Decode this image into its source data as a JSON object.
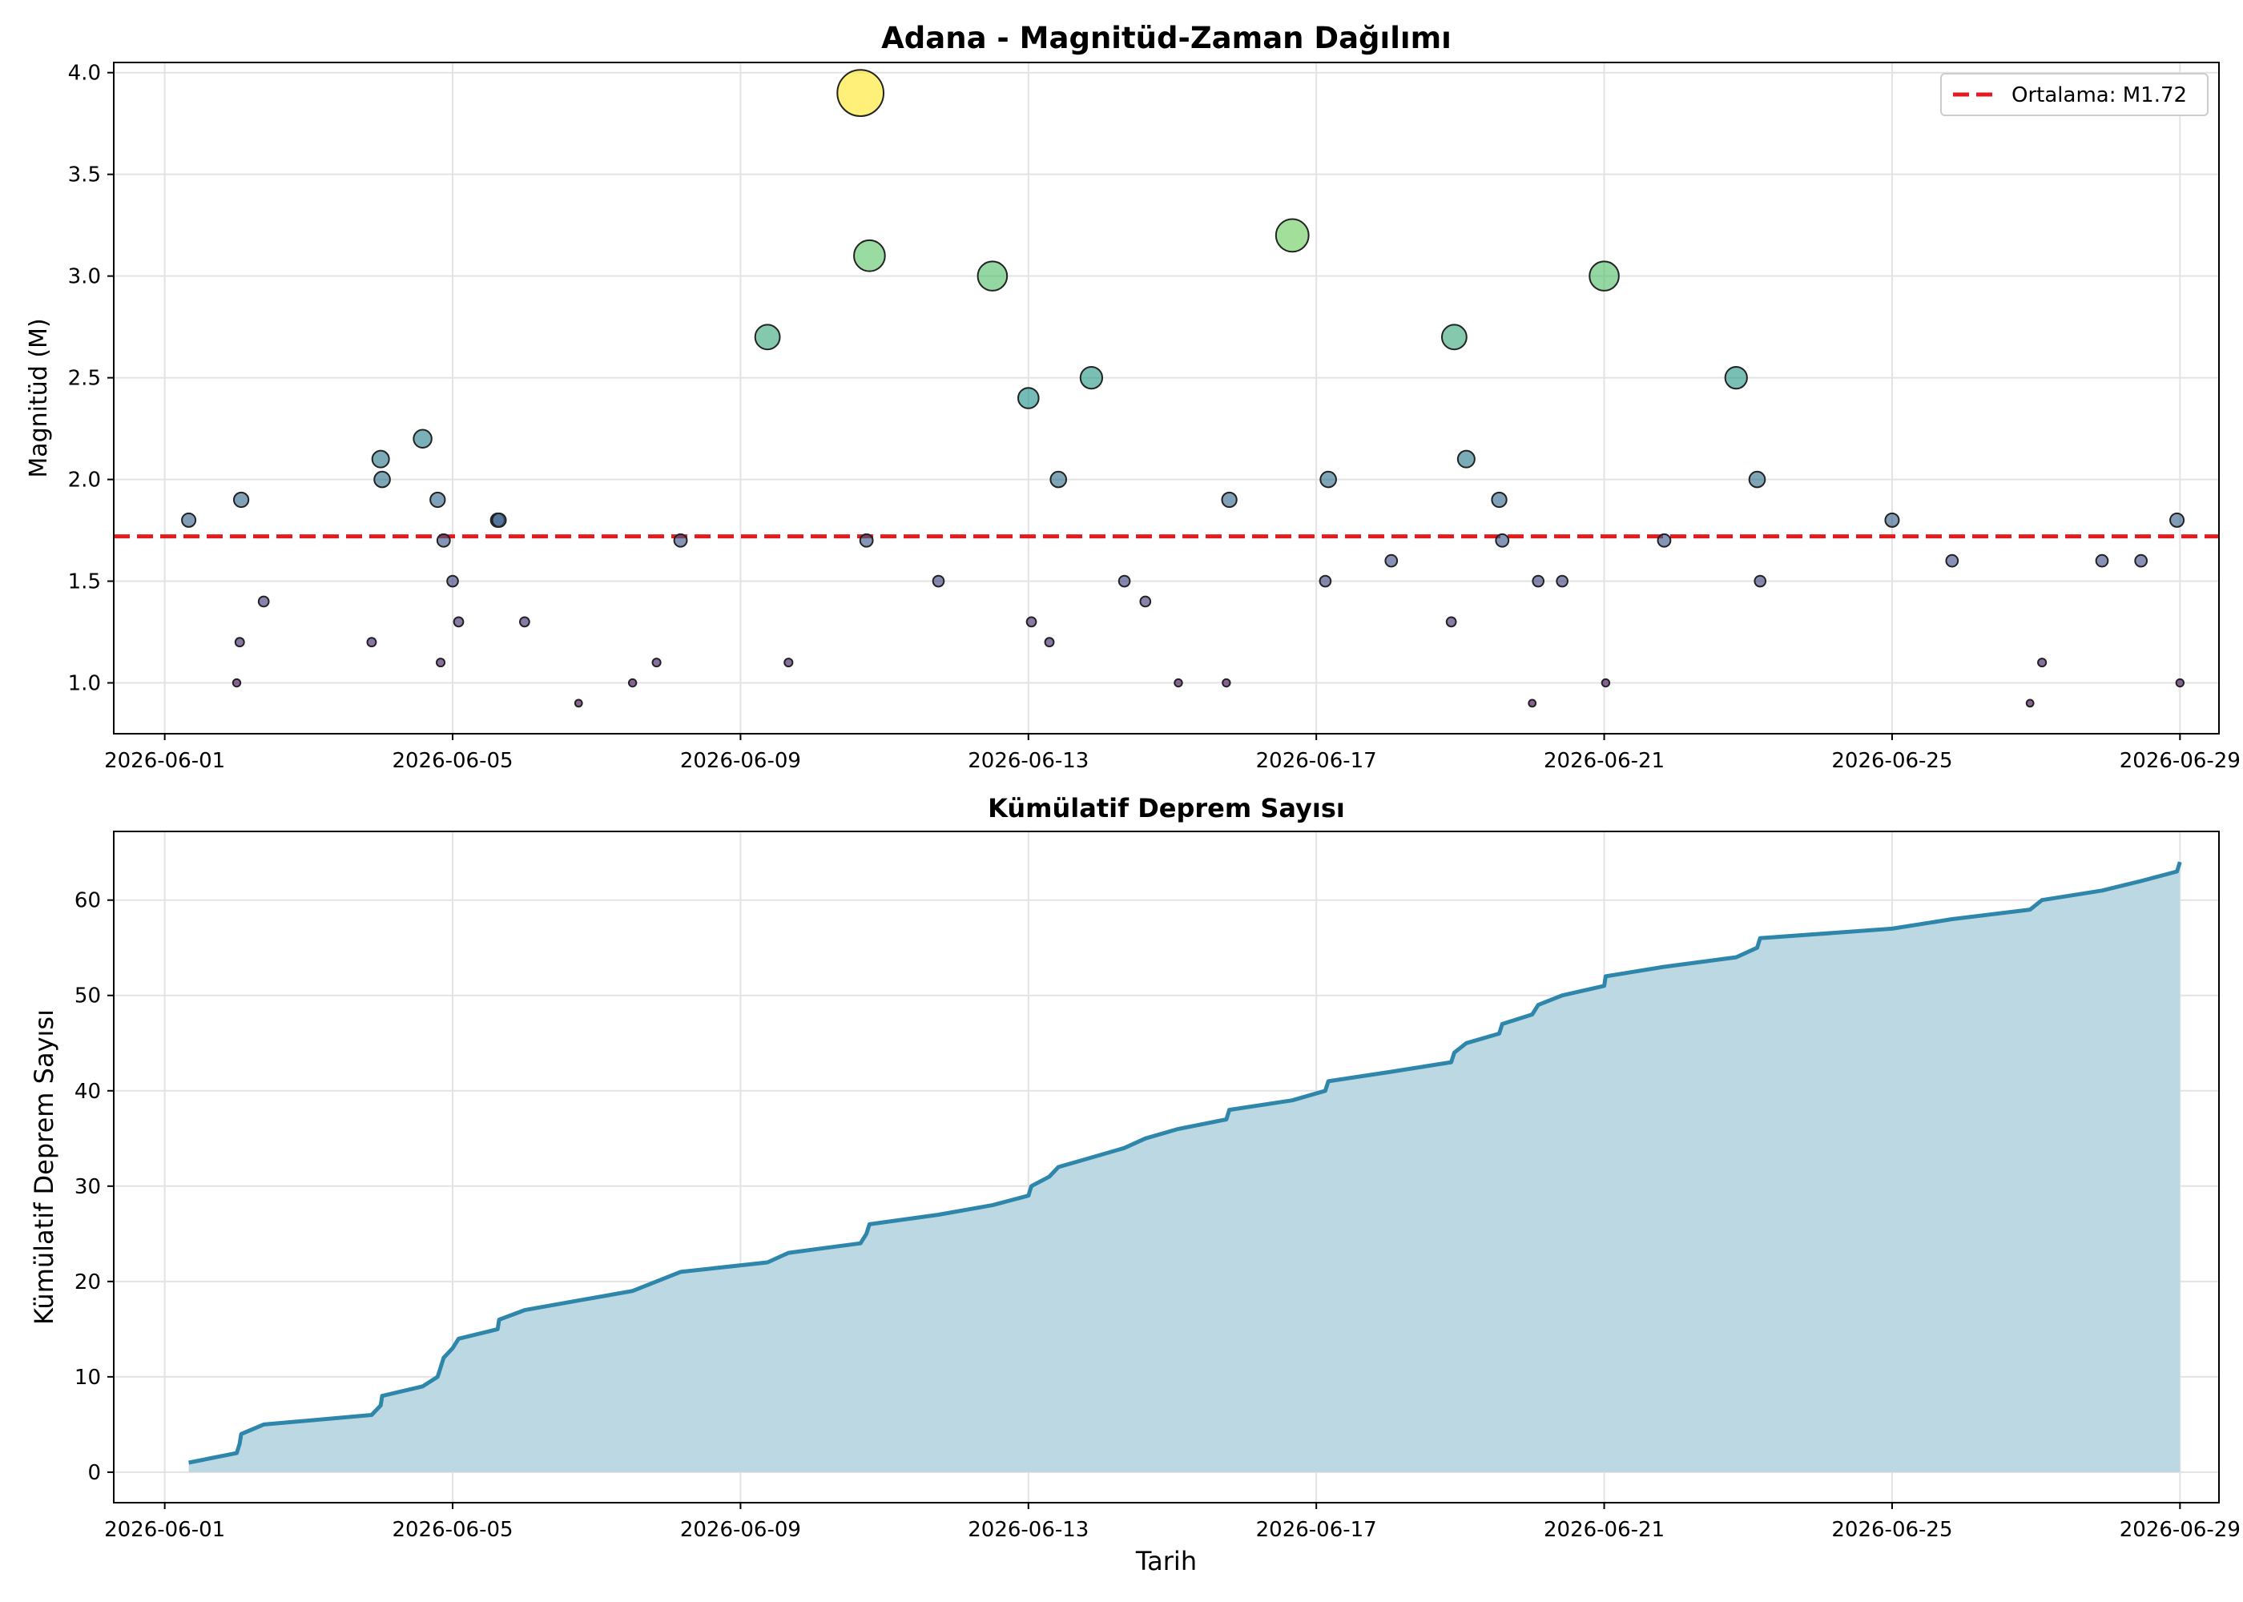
{
  "chart_data": [
    {
      "type": "scatter",
      "title": "Adana - Magnitüd-Zaman Dağılımı",
      "xlabel": "",
      "ylabel": "Magnitüd (M)",
      "x_ticks": [
        "2026-06-01",
        "2026-06-05",
        "2026-06-09",
        "2026-06-13",
        "2026-06-17",
        "2026-06-21",
        "2026-06-25",
        "2026-06-29"
      ],
      "y_ticks": [
        "1.0",
        "1.5",
        "2.0",
        "2.5",
        "3.0",
        "3.5",
        "4.0"
      ],
      "xlim": [
        "2026-05-31T07:00",
        "2026-06-29T13:00"
      ],
      "ylim": [
        0.75,
        4.05
      ],
      "grid": true,
      "legend": "top-right",
      "mean_line": {
        "label": "Ortalama: M1.72",
        "value": 1.72,
        "color": "#e41a1c"
      },
      "points": [
        {
          "x": "2026-06-01T08:00",
          "y": 1.8
        },
        {
          "x": "2026-06-02T00:00",
          "y": 1.0
        },
        {
          "x": "2026-06-02T01:00",
          "y": 1.2
        },
        {
          "x": "2026-06-02T01:30",
          "y": 1.9
        },
        {
          "x": "2026-06-02T09:00",
          "y": 1.4
        },
        {
          "x": "2026-06-03T21:00",
          "y": 1.2
        },
        {
          "x": "2026-06-04T00:00",
          "y": 2.1
        },
        {
          "x": "2026-06-04T00:30",
          "y": 2.0
        },
        {
          "x": "2026-06-04T14:00",
          "y": 2.2
        },
        {
          "x": "2026-06-04T19:00",
          "y": 1.9
        },
        {
          "x": "2026-06-04T20:00",
          "y": 1.1
        },
        {
          "x": "2026-06-04T21:00",
          "y": 1.7
        },
        {
          "x": "2026-06-05T00:00",
          "y": 1.5
        },
        {
          "x": "2026-06-05T02:00",
          "y": 1.3
        },
        {
          "x": "2026-06-05T15:00",
          "y": 1.8
        },
        {
          "x": "2026-06-05T15:30",
          "y": 1.8
        },
        {
          "x": "2026-06-06T00:00",
          "y": 1.3
        },
        {
          "x": "2026-06-06T18:00",
          "y": 0.9
        },
        {
          "x": "2026-06-07T12:00",
          "y": 1.0
        },
        {
          "x": "2026-06-07T20:00",
          "y": 1.1
        },
        {
          "x": "2026-06-08T04:00",
          "y": 1.7
        },
        {
          "x": "2026-06-09T09:00",
          "y": 2.7
        },
        {
          "x": "2026-06-09T16:00",
          "y": 1.1
        },
        {
          "x": "2026-06-10T16:00",
          "y": 3.9
        },
        {
          "x": "2026-06-10T18:00",
          "y": 1.7
        },
        {
          "x": "2026-06-10T19:00",
          "y": 3.1
        },
        {
          "x": "2026-06-11T18:00",
          "y": 1.5
        },
        {
          "x": "2026-06-12T12:00",
          "y": 3.0
        },
        {
          "x": "2026-06-13T00:00",
          "y": 2.4
        },
        {
          "x": "2026-06-13T01:00",
          "y": 1.3
        },
        {
          "x": "2026-06-13T07:00",
          "y": 1.2
        },
        {
          "x": "2026-06-13T10:00",
          "y": 2.0
        },
        {
          "x": "2026-06-13T21:00",
          "y": 2.5
        },
        {
          "x": "2026-06-14T08:00",
          "y": 1.5
        },
        {
          "x": "2026-06-14T15:00",
          "y": 1.4
        },
        {
          "x": "2026-06-15T02:00",
          "y": 1.0
        },
        {
          "x": "2026-06-15T18:00",
          "y": 1.0
        },
        {
          "x": "2026-06-15T19:00",
          "y": 1.9
        },
        {
          "x": "2026-06-16T16:00",
          "y": 3.2
        },
        {
          "x": "2026-06-17T03:00",
          "y": 1.5
        },
        {
          "x": "2026-06-17T04:00",
          "y": 2.0
        },
        {
          "x": "2026-06-18T01:00",
          "y": 1.6
        },
        {
          "x": "2026-06-18T21:00",
          "y": 1.3
        },
        {
          "x": "2026-06-18T22:00",
          "y": 2.7
        },
        {
          "x": "2026-06-19T02:00",
          "y": 2.1
        },
        {
          "x": "2026-06-19T13:00",
          "y": 1.9
        },
        {
          "x": "2026-06-19T14:00",
          "y": 1.7
        },
        {
          "x": "2026-06-20T00:00",
          "y": 0.9
        },
        {
          "x": "2026-06-20T02:00",
          "y": 1.5
        },
        {
          "x": "2026-06-20T10:00",
          "y": 1.5
        },
        {
          "x": "2026-06-21T00:00",
          "y": 3.0
        },
        {
          "x": "2026-06-21T00:30",
          "y": 1.0
        },
        {
          "x": "2026-06-21T20:00",
          "y": 1.7
        },
        {
          "x": "2026-06-22T20:00",
          "y": 2.5
        },
        {
          "x": "2026-06-23T03:00",
          "y": 2.0
        },
        {
          "x": "2026-06-23T04:00",
          "y": 1.5
        },
        {
          "x": "2026-06-25T00:00",
          "y": 1.8
        },
        {
          "x": "2026-06-25T20:00",
          "y": 1.6
        },
        {
          "x": "2026-06-26T22:00",
          "y": 0.9
        },
        {
          "x": "2026-06-27T02:00",
          "y": 1.1
        },
        {
          "x": "2026-06-27T22:00",
          "y": 1.6
        },
        {
          "x": "2026-06-28T11:00",
          "y": 1.6
        },
        {
          "x": "2026-06-28T23:00",
          "y": 1.8
        },
        {
          "x": "2026-06-29T00:00",
          "y": 1.0
        }
      ]
    },
    {
      "type": "area",
      "title": "Kümülatif Deprem Sayısı",
      "xlabel": "Tarih",
      "ylabel": "Kümülatif Deprem Sayısı",
      "x_ticks": [
        "2026-06-01",
        "2026-06-05",
        "2026-06-09",
        "2026-06-13",
        "2026-06-17",
        "2026-06-21",
        "2026-06-25",
        "2026-06-29"
      ],
      "y_ticks": [
        "0",
        "10",
        "20",
        "30",
        "40",
        "50",
        "60"
      ],
      "xlim": [
        "2026-05-31T07:00",
        "2026-06-29T13:00"
      ],
      "ylim": [
        -3.2,
        67.2
      ],
      "grid": true,
      "colors": {
        "line": "#2e86ab",
        "fill": "#bcd9e3"
      }
    }
  ]
}
